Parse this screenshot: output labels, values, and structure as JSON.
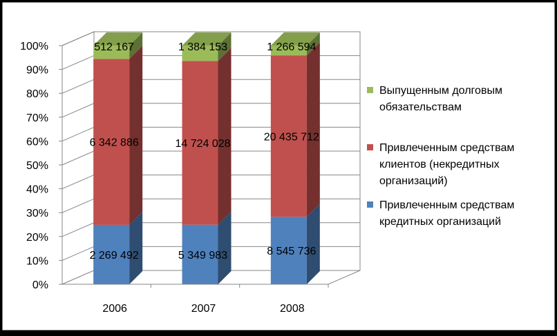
{
  "chart_data": {
    "type": "bar",
    "stacked": "percent",
    "style": "3d-column",
    "categories": [
      "2006",
      "2007",
      "2008"
    ],
    "y_ticks": [
      "0%",
      "10%",
      "20%",
      "30%",
      "40%",
      "50%",
      "60%",
      "70%",
      "80%",
      "90%",
      "100%"
    ],
    "ylim": [
      0,
      100
    ],
    "legend_position": "right",
    "series": [
      {
        "name": "Привлеченным средствам кредитных организаций",
        "legend_lines": [
          "Привлеченным средствам",
          "кредитных организаций"
        ],
        "values": [
          2269492,
          5349983,
          8545736
        ],
        "labels": [
          "2 269 492",
          "5 349 983",
          "8 545 736"
        ],
        "color": "#4F81BD"
      },
      {
        "name": "Привлеченным средствам клиентов (некредитных организаций)",
        "legend_lines": [
          "Привлеченным средствам",
          "клиентов (некредитных",
          "организаций)"
        ],
        "values": [
          6342886,
          14724028,
          20435712
        ],
        "labels": [
          "6 342 886",
          "14 724 028",
          "20 435 712"
        ],
        "color": "#C0504D"
      },
      {
        "name": "Выпущенным долговым обязательствам",
        "legend_lines": [
          "Выпущенным долговым",
          "обязательствам"
        ],
        "values": [
          512167,
          1384153,
          1266594
        ],
        "labels": [
          "512 167",
          "1 384 153",
          "1 266 594"
        ],
        "color": "#9BBB59"
      }
    ]
  }
}
